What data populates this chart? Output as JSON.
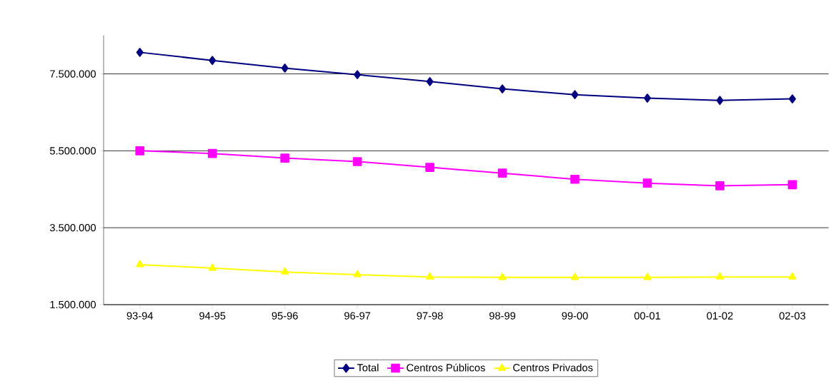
{
  "chart_data": {
    "type": "line",
    "categories": [
      "93-94",
      "94-95",
      "95-96",
      "96-97",
      "97-98",
      "98-99",
      "99-00",
      "00-01",
      "01-02",
      "02-03"
    ],
    "series": [
      {
        "name": "Total",
        "color": "#000080",
        "marker": "diamond",
        "values": [
          8060000,
          7850000,
          7650000,
          7480000,
          7300000,
          7110000,
          6960000,
          6870000,
          6810000,
          6850000
        ]
      },
      {
        "name": "Centros Públicos",
        "color": "#ff00ff",
        "marker": "square",
        "values": [
          5500000,
          5430000,
          5310000,
          5220000,
          5070000,
          4920000,
          4760000,
          4660000,
          4590000,
          4620000
        ]
      },
      {
        "name": "Centros Privados",
        "color": "#ffff00",
        "marker": "triangle",
        "values": [
          2540000,
          2450000,
          2350000,
          2280000,
          2220000,
          2210000,
          2210000,
          2210000,
          2220000,
          2220000
        ]
      }
    ],
    "ylim": [
      1500000,
      8500000
    ],
    "yticks": [
      {
        "value": 1500000,
        "label": "1.500.000"
      },
      {
        "value": 3500000,
        "label": "3.500.000"
      },
      {
        "value": 5500000,
        "label": "5.500.000"
      },
      {
        "value": 7500000,
        "label": "7.500.000"
      }
    ],
    "grid": "y",
    "legend": "bottom",
    "line_style": "solid"
  }
}
